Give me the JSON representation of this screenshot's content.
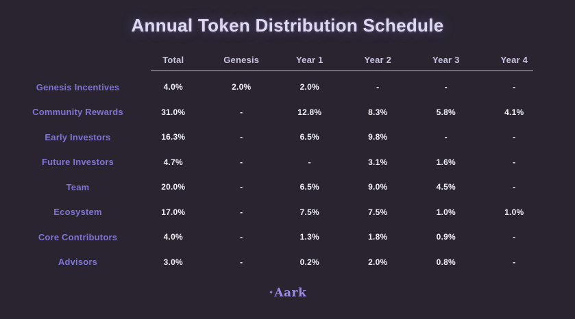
{
  "title": "Annual Token Distribution Schedule",
  "chart_data": {
    "type": "table",
    "title": "Annual Token Distribution Schedule",
    "columns": [
      "Total",
      "Genesis",
      "Year 1",
      "Year 2",
      "Year 3",
      "Year 4"
    ],
    "rows": [
      {
        "label": "Genesis Incentives",
        "values": [
          "4.0%",
          "2.0%",
          "2.0%",
          "-",
          "-",
          "-"
        ]
      },
      {
        "label": "Community Rewards",
        "values": [
          "31.0%",
          "-",
          "12.8%",
          "8.3%",
          "5.8%",
          "4.1%"
        ]
      },
      {
        "label": "Early Investors",
        "values": [
          "16.3%",
          "-",
          "6.5%",
          "9.8%",
          "-",
          "-"
        ]
      },
      {
        "label": "Future Investors",
        "values": [
          "4.7%",
          "-",
          "-",
          "3.1%",
          "1.6%",
          "-"
        ]
      },
      {
        "label": "Team",
        "values": [
          "20.0%",
          "-",
          "6.5%",
          "9.0%",
          "4.5%",
          "-"
        ]
      },
      {
        "label": "Ecosystem",
        "values": [
          "17.0%",
          "-",
          "7.5%",
          "7.5%",
          "1.0%",
          "1.0%"
        ]
      },
      {
        "label": "Core Contributors",
        "values": [
          "4.0%",
          "-",
          "1.3%",
          "1.8%",
          "0.9%",
          "-"
        ]
      },
      {
        "label": "Advisors",
        "values": [
          "3.0%",
          "-",
          "0.2%",
          "2.0%",
          "0.8%",
          "-"
        ]
      }
    ]
  },
  "footer": {
    "logo_text": "Aark",
    "logo_sparkle": "✦"
  },
  "colors": {
    "background": "#292430",
    "title": "#ded8f2",
    "header_text": "#c9c4df",
    "row_label": "#8175d4",
    "value_text": "#f2f0f7",
    "divider": "#bdb9ca",
    "logo": "#9c8de2"
  }
}
